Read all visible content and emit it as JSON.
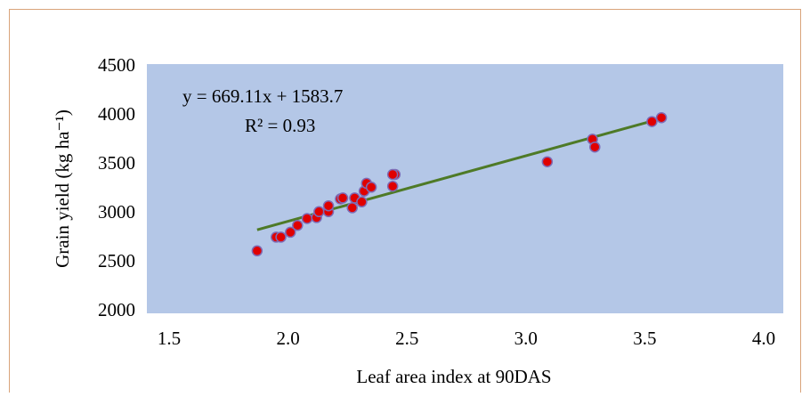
{
  "chart_data": {
    "type": "scatter",
    "x_label": "Leaf area index at 90DAS",
    "y_label": "Grain yield (kg ha⁻¹)",
    "x": [
      1.87,
      1.95,
      1.97,
      2.01,
      2.04,
      2.08,
      2.12,
      2.13,
      2.17,
      2.17,
      2.22,
      2.23,
      2.27,
      2.28,
      2.31,
      2.32,
      2.33,
      2.35,
      2.44,
      2.45,
      2.44,
      3.09,
      3.28,
      3.29,
      3.53,
      3.57
    ],
    "series": [
      {
        "color": "#e00000",
        "values": [
          2620,
          2760,
          2760,
          2810,
          2880,
          2950,
          2960,
          3020,
          3020,
          3080,
          3150,
          3160,
          3060,
          3160,
          3120,
          3230,
          3310,
          3270,
          3280,
          3400,
          3400,
          3530,
          3760,
          3680,
          3940,
          3980
        ]
      }
    ],
    "trendline": {
      "equation": "y = 669.11x + 1583.7",
      "r_squared_label": "R² = 0.93",
      "slope": 669.11,
      "intercept": 1583.7,
      "color": "#4e7a27"
    },
    "xlim": [
      1.5,
      4.0
    ],
    "xticks": [
      {
        "value": 1.5,
        "label": "1.5"
      },
      {
        "value": 2.0,
        "label": "2.0"
      },
      2.5,
      {
        "value": 3.0,
        "label": "3.0"
      },
      3.5,
      {
        "value": 4.0,
        "label": "4.0"
      }
    ],
    "ylim": [
      2000,
      4500
    ],
    "yticks": [
      2000,
      2500,
      3000,
      3500,
      4000,
      4500
    ],
    "plot_background": "#b4c7e7"
  }
}
